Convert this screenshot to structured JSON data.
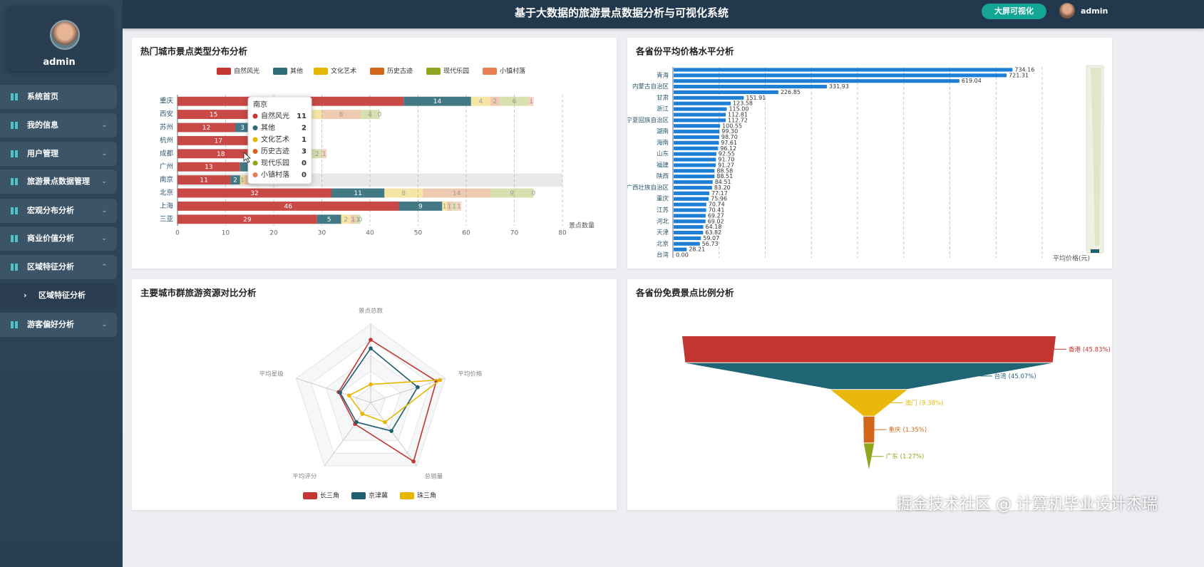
{
  "header": {
    "title": "基于大数据的旅游景点数据分析与可视化系统",
    "button": "大屏可视化",
    "user": "admin"
  },
  "sidebar": {
    "user": "admin",
    "menu": [
      "系统首页",
      "我的信息",
      "用户管理",
      "旅游景点数据管理",
      "宏观分布分析",
      "商业价值分析",
      "区域特征分析",
      "游客偏好分析"
    ],
    "submenu": "区域特征分析"
  },
  "watermark": "掘金技术社区 @ 计算机毕业设计杰瑞",
  "chart_data": [
    {
      "type": "bar",
      "orientation": "horizontal",
      "stacked": true,
      "title": "热门城市景点类型分布分析",
      "categories": [
        "重庆",
        "西安",
        "苏州",
        "杭州",
        "成都",
        "广州",
        "南京",
        "北京",
        "上海",
        "三亚"
      ],
      "series": [
        {
          "name": "自然风光",
          "color": "#c23531",
          "values": [
            47,
            15,
            12,
            17,
            18,
            13,
            11,
            32,
            46,
            29
          ]
        },
        {
          "name": "其他",
          "color": "#2f6a78",
          "values": [
            14,
            10,
            3,
            4,
            5,
            5,
            2,
            11,
            9,
            5
          ]
        },
        {
          "name": "文化艺术",
          "color": "#e6b600",
          "values": [
            4,
            5,
            2,
            3,
            3,
            2,
            1,
            8,
            1,
            2
          ]
        },
        {
          "name": "历史古迹",
          "color": "#d4661c",
          "values": [
            2,
            8,
            2,
            2,
            2,
            1,
            3,
            14,
            1,
            1
          ]
        },
        {
          "name": "现代乐园",
          "color": "#91a61e",
          "values": [
            6,
            4,
            1,
            1,
            2,
            1,
            0,
            9,
            1,
            1
          ]
        },
        {
          "name": "小镇村落",
          "color": "#ea7e53",
          "values": [
            1,
            0,
            0,
            0,
            1,
            0,
            0,
            0,
            1,
            0
          ]
        }
      ],
      "xlim": [
        0,
        80
      ],
      "xticks": [
        0,
        10,
        20,
        30,
        40,
        50,
        60,
        70,
        80
      ],
      "xlabel": "景点数量",
      "grid": true,
      "legend": "top"
    },
    {
      "type": "bar",
      "orientation": "horizontal",
      "stacked": false,
      "title": "各省份平均价格水平分析",
      "categories": [
        null,
        "青海",
        null,
        "内蒙古自治区",
        null,
        "甘肃",
        null,
        "浙江",
        null,
        "宁夏回族自治区",
        null,
        "湖南",
        null,
        "海南",
        null,
        "山东",
        null,
        "福建",
        null,
        "陕西",
        null,
        "广西壮族自治区",
        null,
        "重庆",
        null,
        "江苏",
        null,
        "河北",
        null,
        "天津",
        null,
        "北京",
        null,
        "台湾"
      ],
      "values": [
        734.16,
        721.31,
        619.04,
        331.93,
        226.85,
        151.91,
        123.58,
        115.0,
        112.81,
        112.72,
        100.55,
        99.3,
        98.7,
        97.61,
        96.12,
        92.55,
        91.7,
        91.27,
        88.58,
        88.51,
        84.51,
        83.2,
        77.17,
        75.96,
        70.74,
        70.41,
        69.27,
        69.02,
        64.18,
        63.82,
        59.07,
        56.73,
        28.21,
        0.0
      ],
      "value_labels": [
        "734.16",
        "721.31",
        "619.04",
        "331.93",
        "226.85",
        "151.91",
        "123.58",
        "115.00",
        "112.81",
        "112.72",
        "100.55",
        "99.30",
        "98.70",
        "97.61",
        "96.12",
        "92.55",
        "91.70",
        "91.27",
        "88.58",
        "88.51",
        "84.51",
        "83.20",
        "77.17",
        "75.96",
        "70.74",
        "70.41",
        "69.27",
        "69.02",
        "64.18",
        "63.82",
        "59.07",
        "56.73",
        "28.21",
        "0.00"
      ],
      "color": "#1f7fd6",
      "xlim": [
        0,
        800
      ],
      "xticks": [
        0,
        100,
        200,
        300,
        400,
        500,
        600,
        700,
        800
      ],
      "xtick_labels": false,
      "xlabel": "平均价格(元)",
      "grid": true
    },
    {
      "type": "radar",
      "title": "主要城市群旅游资源对比分析",
      "indicators": [
        "景点总数",
        "平均价格",
        "总销量",
        "平均评分",
        "平均星级"
      ],
      "rlim": [
        0,
        100
      ],
      "series": [
        {
          "name": "长三角",
          "color": "#c23531",
          "values": [
            80,
            88,
            93,
            34,
            43
          ]
        },
        {
          "name": "京津冀",
          "color": "#1f5f6e",
          "values": [
            69,
            63,
            45,
            31,
            41
          ]
        },
        {
          "name": "珠三角",
          "color": "#e6b600",
          "values": [
            23,
            93,
            31,
            18,
            29
          ]
        }
      ],
      "legend": "bottom"
    },
    {
      "type": "funnel",
      "title": "各省份免费景点比例分析",
      "categories": [
        "香港",
        "台湾",
        "澳门",
        "重庆",
        "广东"
      ],
      "values": [
        45.83,
        45.07,
        9.38,
        1.35,
        1.27
      ],
      "value_labels": [
        "(45.83%)",
        "(45.07%)",
        "(9.38%)",
        "(1.35%)",
        "(1.27%)"
      ],
      "colors": [
        "#c23531",
        "#1f6573",
        "#eab80c",
        "#d4661c",
        "#91a61e"
      ]
    }
  ]
}
